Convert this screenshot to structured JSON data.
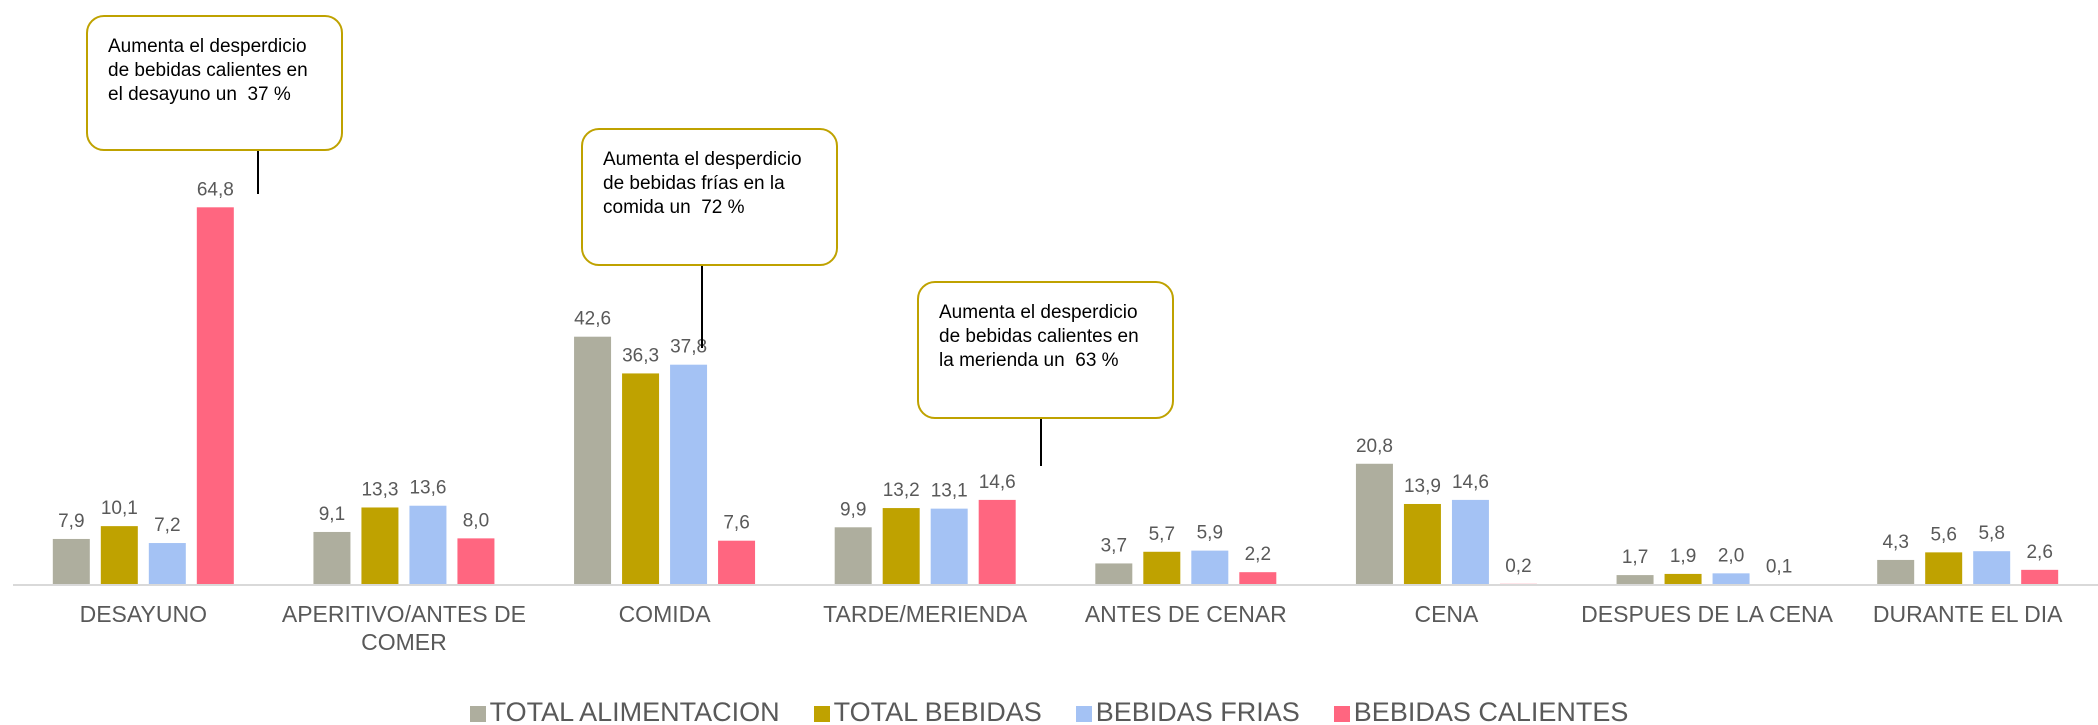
{
  "chart_data": {
    "type": "bar",
    "categories": [
      "DESAYUNO",
      "APERITIVO/ANTES DE COMER",
      "COMIDA",
      "TARDE/MERIENDA",
      "ANTES DE CENAR",
      "CENA",
      "DESPUES DE LA CENA",
      "DURANTE EL DIA"
    ],
    "series": [
      {
        "name": "TOTAL ALIMENTACION",
        "color": "#aeae9e",
        "values": [
          7.9,
          9.1,
          42.6,
          9.9,
          3.7,
          20.8,
          1.7,
          4.3
        ],
        "value_labels": [
          "7,9",
          "9,1",
          "42,6",
          "9,9",
          "3,7",
          "20,8",
          "1,7",
          "4,3"
        ]
      },
      {
        "name": "TOTAL BEBIDAS",
        "color": "#bfa200",
        "values": [
          10.1,
          13.3,
          36.3,
          13.2,
          5.7,
          13.9,
          1.9,
          5.6
        ],
        "value_labels": [
          "10,1",
          "13,3",
          "36,3",
          "13,2",
          "5,7",
          "13,9",
          "1,9",
          "5,6"
        ]
      },
      {
        "name": "BEBIDAS FRIAS",
        "color": "#a4c2f4",
        "values": [
          7.2,
          13.6,
          37.8,
          13.1,
          5.9,
          14.6,
          2.0,
          5.8
        ],
        "value_labels": [
          "7,2",
          "13,6",
          "37,8",
          "13,1",
          "5,9",
          "14,6",
          "2,0",
          "5,8"
        ]
      },
      {
        "name": "BEBIDAS CALIENTES",
        "color": "#ff6680",
        "values": [
          64.8,
          8.0,
          7.6,
          14.6,
          2.2,
          0.2,
          0.1,
          2.6
        ],
        "value_labels": [
          "64,8",
          "8,0",
          "7,6",
          "14,6",
          "2,2",
          "0,2",
          "0,1",
          "2,6"
        ]
      }
    ],
    "ylim": [
      0,
      70
    ],
    "grid": false,
    "legend": "bottom",
    "annotations": [
      {
        "text": "Aumenta el desperdicio de bebidas calientes en el desayuno un  37 %"
      },
      {
        "text": "Aumenta el desperdicio de bebidas frías en la comida un  72 %"
      },
      {
        "text": "Aumenta el desperdicio de bebidas calientes en la merienda un  63 %"
      }
    ]
  }
}
